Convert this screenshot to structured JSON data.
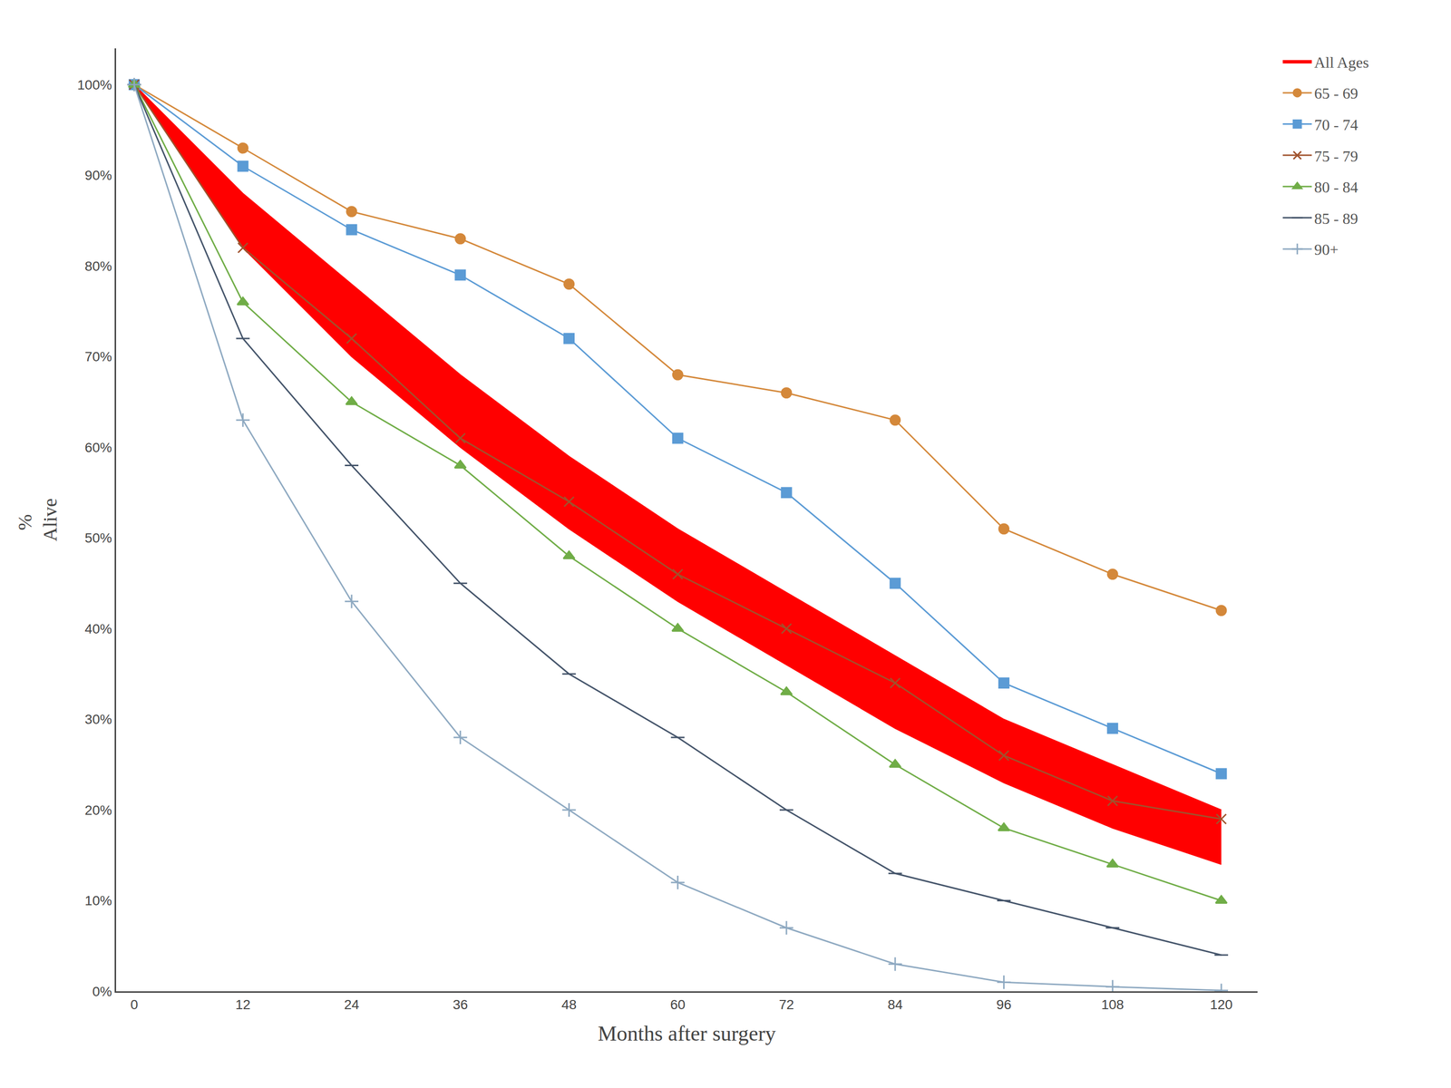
{
  "chart_data": {
    "type": "line",
    "xlabel": "Months after surgery",
    "ylabel": "% \nAlive",
    "x": [
      0,
      12,
      24,
      36,
      48,
      60,
      72,
      84,
      96,
      108,
      120
    ],
    "series": [
      {
        "name": "All Ages",
        "type": "band",
        "color": "#FF0000",
        "upper": [
          1.0,
          0.88,
          0.78,
          0.68,
          0.59,
          0.51,
          0.44,
          0.37,
          0.3,
          0.25,
          0.2
        ],
        "lower": [
          1.0,
          0.82,
          0.7,
          0.6,
          0.51,
          0.43,
          0.36,
          0.29,
          0.23,
          0.18,
          0.14
        ]
      },
      {
        "name": "65 - 69",
        "type": "line",
        "color": "#D4883A",
        "marker": "circle",
        "values": [
          1.0,
          0.93,
          0.86,
          0.83,
          0.78,
          0.68,
          0.66,
          0.63,
          0.51,
          0.46,
          0.42
        ]
      },
      {
        "name": "70 - 74",
        "type": "line",
        "color": "#5B9BD5",
        "marker": "square",
        "values": [
          1.0,
          0.91,
          0.84,
          0.79,
          0.72,
          0.61,
          0.55,
          0.45,
          0.34,
          0.29,
          0.24
        ]
      },
      {
        "name": "75 - 79",
        "type": "line",
        "color": "#A0522D",
        "marker": "x",
        "values": [
          1.0,
          0.82,
          0.72,
          0.61,
          0.54,
          0.46,
          0.4,
          0.34,
          0.26,
          0.21,
          0.19
        ]
      },
      {
        "name": "80 - 84",
        "type": "line",
        "color": "#70AD47",
        "marker": "triangle-up",
        "values": [
          1.0,
          0.76,
          0.65,
          0.58,
          0.48,
          0.4,
          0.33,
          0.25,
          0.18,
          0.14,
          0.1
        ]
      },
      {
        "name": "85 - 89",
        "type": "line",
        "color": "#44546A",
        "marker": "line-ew",
        "values": [
          1.0,
          0.72,
          0.58,
          0.45,
          0.35,
          0.28,
          0.2,
          0.13,
          0.1,
          0.07,
          0.04
        ]
      },
      {
        "name": "90+",
        "type": "line",
        "color": "#8EA9C1",
        "marker": "cross",
        "values": [
          1.0,
          0.63,
          0.43,
          0.28,
          0.2,
          0.12,
          0.07,
          0.03,
          0.01,
          0.005,
          0.001
        ]
      }
    ],
    "xlim": [
      -2,
      124
    ],
    "xticks": [
      0,
      12,
      24,
      36,
      48,
      60,
      72,
      84,
      96,
      108,
      120
    ],
    "ylim": [
      0,
      1.04
    ],
    "yticks": [
      {
        "value": 0,
        "label": "0%"
      },
      {
        "value": 0.1,
        "label": "10%"
      },
      {
        "value": 0.2,
        "label": "20%"
      },
      {
        "value": 0.3,
        "label": "30%"
      },
      {
        "value": 0.4,
        "label": "40%"
      },
      {
        "value": 0.5,
        "label": "50%"
      },
      {
        "value": 0.6,
        "label": "60%"
      },
      {
        "value": 0.7,
        "label": "70%"
      },
      {
        "value": 0.8,
        "label": "80%"
      },
      {
        "value": 0.9,
        "label": "90%"
      },
      {
        "value": 1.0,
        "label": "100%"
      }
    ],
    "grid": false,
    "legend": "upper right"
  }
}
